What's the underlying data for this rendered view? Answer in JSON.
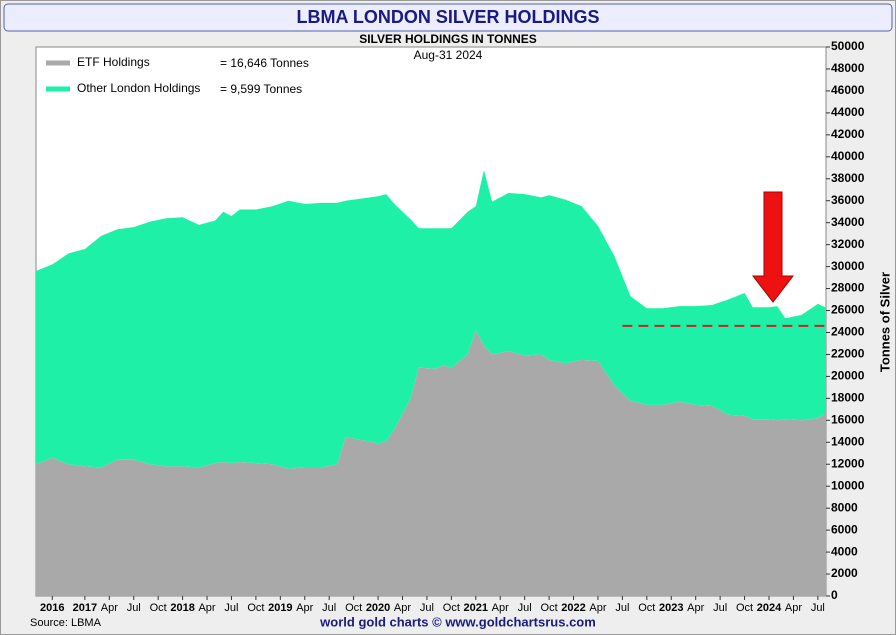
{
  "chart_data": {
    "type": "stacked-area",
    "title": "LBMA LONDON SILVER HOLDINGS",
    "subtitle": "SILVER HOLDINGS IN TONNES",
    "date_label": "Aug-31  2024",
    "y_label": "Tonnes of Silver",
    "source": "Source: LBMA",
    "footer": "world gold charts © www.goldchartsrus.com",
    "x": [
      "2016-07",
      "2016-09",
      "2016-11",
      "2017-01",
      "2017-03",
      "2017-05",
      "2017-07",
      "2017-09",
      "2017-11",
      "2018-01",
      "2018-03",
      "2018-05",
      "2018-06",
      "2018-07",
      "2018-08",
      "2018-10",
      "2018-12",
      "2019-02",
      "2019-04",
      "2019-06",
      "2019-08",
      "2019-09",
      "2019-11",
      "2020-01",
      "2020-02",
      "2020-03",
      "2020-05",
      "2020-06",
      "2020-08",
      "2020-09",
      "2020-10",
      "2020-12",
      "2021-01",
      "2021-02",
      "2021-03",
      "2021-05",
      "2021-07",
      "2021-09",
      "2021-10",
      "2021-12",
      "2022-02",
      "2022-04",
      "2022-06",
      "2022-08",
      "2022-10",
      "2022-12",
      "2023-02",
      "2023-04",
      "2023-06",
      "2023-08",
      "2023-10",
      "2023-11",
      "2024-01",
      "2024-02",
      "2024-03",
      "2024-05",
      "2024-07",
      "2024-08"
    ],
    "series": [
      {
        "name": "ETF Holdings",
        "legend_value": "= 16,646 Tonnes",
        "color": "#a9a9a9",
        "values": [
          12000,
          12600,
          12000,
          11800,
          11700,
          12400,
          12400,
          12000,
          11800,
          11800,
          11700,
          12100,
          12200,
          12100,
          12200,
          12100,
          12000,
          11600,
          11700,
          11700,
          12000,
          14500,
          14200,
          13900,
          14100,
          15200,
          18000,
          20800,
          20700,
          21000,
          20800,
          22000,
          24200,
          22800,
          22000,
          22300,
          21900,
          22000,
          21500,
          21200,
          21500,
          21400,
          19200,
          17800,
          17400,
          17400,
          17700,
          17400,
          17300,
          16500,
          16400,
          16100,
          16100,
          16000,
          16100,
          16000,
          16200,
          16646
        ]
      },
      {
        "name": "Other London Holdings",
        "legend_value": "= 9,599 Tonnes",
        "color": "#1ef0a8",
        "values": [
          17600,
          17600,
          19200,
          19800,
          21100,
          21000,
          21200,
          22100,
          22600,
          22700,
          22100,
          22100,
          22800,
          22500,
          23000,
          23100,
          23500,
          24400,
          24000,
          24100,
          23800,
          21500,
          22000,
          22500,
          22500,
          20500,
          16300,
          12700,
          12800,
          12500,
          12700,
          13000,
          11300,
          16000,
          13900,
          14400,
          14700,
          14300,
          15000,
          14900,
          14000,
          12300,
          11800,
          9500,
          8800,
          8800,
          8700,
          9000,
          9200,
          10500,
          11200,
          10200,
          10200,
          10400,
          9200,
          9600,
          10400,
          9599
        ]
      }
    ],
    "reference_line": {
      "value": 24600,
      "from": "2022-07",
      "to": "2024-08",
      "color": "#cc2222"
    },
    "xlim": [
      "2016-07",
      "2024-08"
    ],
    "xticks": [
      {
        "value": "2016-09",
        "label": "2016"
      },
      {
        "value": "2017-01",
        "label": "2017"
      },
      {
        "value": "2017-04",
        "label": "Apr"
      },
      {
        "value": "2017-07",
        "label": "Jul"
      },
      {
        "value": "2017-10",
        "label": "Oct"
      },
      {
        "value": "2018-01",
        "label": "2018"
      },
      {
        "value": "2018-04",
        "label": "Apr"
      },
      {
        "value": "2018-07",
        "label": "Jul"
      },
      {
        "value": "2018-10",
        "label": "Oct"
      },
      {
        "value": "2019-01",
        "label": "2019"
      },
      {
        "value": "2019-04",
        "label": "Apr"
      },
      {
        "value": "2019-07",
        "label": "Jul"
      },
      {
        "value": "2019-10",
        "label": "Oct"
      },
      {
        "value": "2020-01",
        "label": "2020"
      },
      {
        "value": "2020-04",
        "label": "Apr"
      },
      {
        "value": "2020-07",
        "label": "Jul"
      },
      {
        "value": "2020-10",
        "label": "Oct"
      },
      {
        "value": "2021-01",
        "label": "2021"
      },
      {
        "value": "2021-04",
        "label": "Apr"
      },
      {
        "value": "2021-07",
        "label": "Jul"
      },
      {
        "value": "2021-10",
        "label": "Oct"
      },
      {
        "value": "2022-01",
        "label": "2022"
      },
      {
        "value": "2022-04",
        "label": "Apr"
      },
      {
        "value": "2022-07",
        "label": "Jul"
      },
      {
        "value": "2022-10",
        "label": "Oct"
      },
      {
        "value": "2023-01",
        "label": "2023"
      },
      {
        "value": "2023-04",
        "label": "Apr"
      },
      {
        "value": "2023-07",
        "label": "Jul"
      },
      {
        "value": "2023-10",
        "label": "Oct"
      },
      {
        "value": "2024-01",
        "label": "2024"
      },
      {
        "value": "2024-04",
        "label": "Apr"
      },
      {
        "value": "2024-07",
        "label": "Jul"
      }
    ],
    "ylim": [
      0,
      50000
    ],
    "yticks": [
      0,
      2000,
      4000,
      6000,
      8000,
      10000,
      12000,
      14000,
      16000,
      18000,
      20000,
      22000,
      24000,
      26000,
      28000,
      30000,
      32000,
      34000,
      36000,
      38000,
      40000,
      42000,
      44000,
      46000,
      48000,
      50000
    ]
  }
}
